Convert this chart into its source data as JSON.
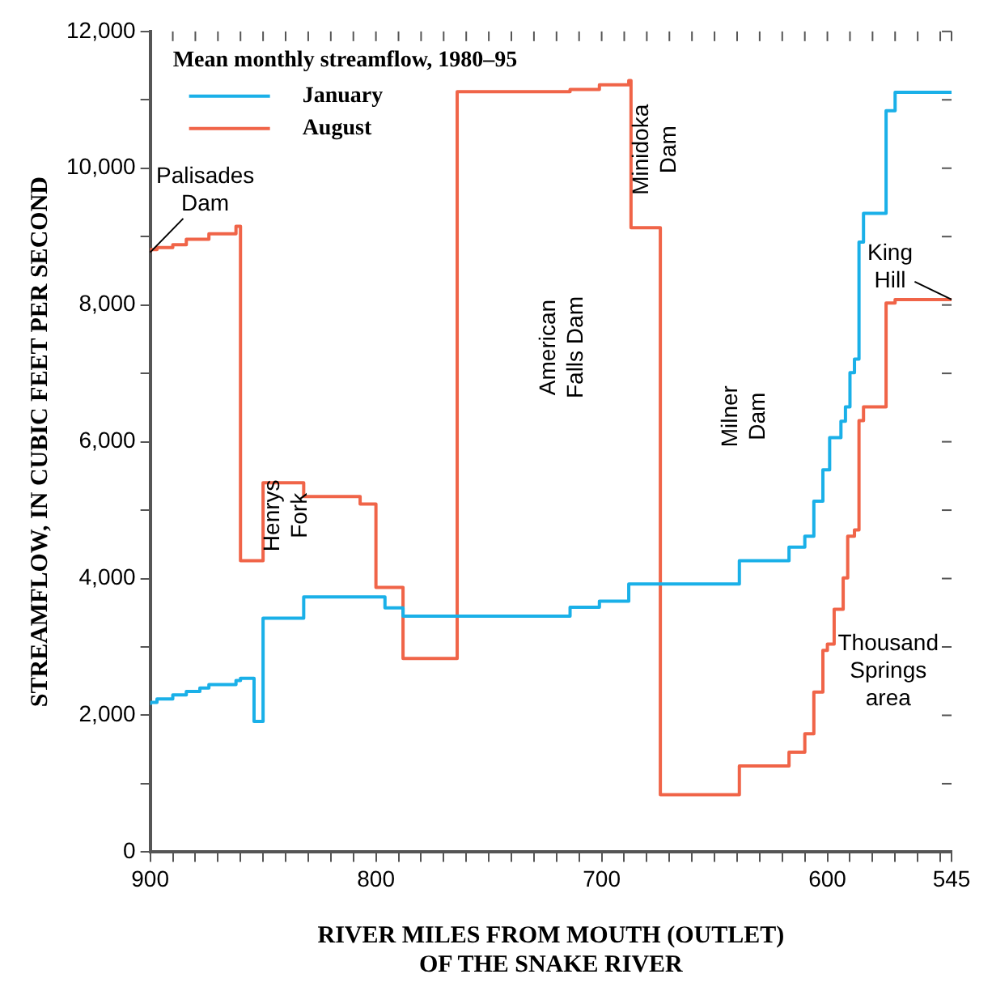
{
  "chart_data": {
    "type": "step",
    "xlabel": "RIVER MILES FROM MOUTH (OUTLET)\nOF THE SNAKE RIVER",
    "ylabel": "STREAMFLOW, IN CUBIC FEET PER SECOND",
    "legend_title": "Mean monthly streamflow, 1980–95",
    "series": [
      {
        "name": "January",
        "color": "#1ab0e8",
        "x": [
          900,
          897,
          890,
          884,
          878,
          874,
          862,
          860,
          854,
          850,
          832,
          796,
          788,
          714,
          701,
          688,
          639,
          617,
          610,
          606,
          602,
          599,
          594,
          592,
          590,
          588,
          586,
          584,
          574,
          570,
          548,
          545
        ],
        "values": [
          2150,
          2190,
          2240,
          2300,
          2350,
          2400,
          2450,
          2510,
          2540,
          1910,
          3420,
          3730,
          3570,
          3450,
          3580,
          3670,
          3920,
          4260,
          4460,
          4620,
          5130,
          5590,
          6060,
          6300,
          6510,
          7010,
          7210,
          8920,
          9340,
          10840,
          11110,
          11110
        ]
      },
      {
        "name": "August",
        "color": "#f06448",
        "x": [
          900,
          897,
          890,
          884,
          874,
          862,
          860,
          850,
          832,
          807,
          800,
          788,
          764,
          714,
          701,
          688,
          687,
          674,
          639,
          617,
          610,
          606,
          602,
          600,
          597,
          593,
          591,
          588,
          586,
          584,
          574,
          570,
          548,
          545
        ],
        "values": [
          8770,
          8810,
          8840,
          8880,
          8960,
          9040,
          9150,
          4260,
          5400,
          5200,
          5090,
          3870,
          2830,
          11120,
          11150,
          11220,
          11280,
          9130,
          840,
          1260,
          1460,
          1730,
          2340,
          2950,
          3040,
          3550,
          4010,
          4620,
          4710,
          6310,
          6510,
          8030,
          8080,
          8080
        ]
      }
    ],
    "xlim": [
      900,
      545
    ],
    "xticks": [
      900,
      {
        "value": 890,
        "label": null
      },
      {
        "value": 880,
        "label": null
      },
      {
        "value": 870,
        "label": null
      },
      {
        "value": 860,
        "label": null
      },
      {
        "value": 850,
        "label": null
      },
      {
        "value": 840,
        "label": null
      },
      {
        "value": 830,
        "label": null
      },
      {
        "value": 820,
        "label": null
      },
      {
        "value": 810,
        "label": null
      },
      800,
      {
        "value": 790,
        "label": null
      },
      {
        "value": 780,
        "label": null
      },
      {
        "value": 770,
        "label": null
      },
      {
        "value": 760,
        "label": null
      },
      {
        "value": 750,
        "label": null
      },
      {
        "value": 740,
        "label": null
      },
      {
        "value": 730,
        "label": null
      },
      {
        "value": 720,
        "label": null
      },
      {
        "value": 710,
        "label": null
      },
      700,
      {
        "value": 690,
        "label": null
      },
      {
        "value": 680,
        "label": null
      },
      {
        "value": 670,
        "label": null
      },
      {
        "value": 660,
        "label": null
      },
      {
        "value": 650,
        "label": null
      },
      {
        "value": 640,
        "label": null
      },
      {
        "value": 630,
        "label": null
      },
      {
        "value": 620,
        "label": null
      },
      {
        "value": 610,
        "label": null
      },
      600,
      {
        "value": 590,
        "label": null
      },
      {
        "value": 580,
        "label": null
      },
      {
        "value": 570,
        "label": null
      },
      {
        "value": 560,
        "label": null
      },
      {
        "value": 550,
        "label": null
      },
      545
    ],
    "ylim": [
      0,
      12000
    ],
    "yticks": [
      0,
      {
        "value": 1000,
        "label": null
      },
      {
        "value": 2000,
        "label": "2,000"
      },
      {
        "value": 3000,
        "label": null
      },
      {
        "value": 4000,
        "label": "4,000"
      },
      {
        "value": 5000,
        "label": null
      },
      {
        "value": 6000,
        "label": "6,000"
      },
      {
        "value": 7000,
        "label": null
      },
      {
        "value": 8000,
        "label": "8,000"
      },
      {
        "value": 9000,
        "label": null
      },
      {
        "value": 10000,
        "label": "10,000"
      },
      {
        "value": 11000,
        "label": null
      },
      {
        "value": 12000,
        "label": "12,000"
      }
    ],
    "grid": false,
    "legend": "top left",
    "marker": "none",
    "line_style": "solid",
    "annotations": [
      {
        "text": "Palisades\nDam",
        "x": 900,
        "y": 8770
      },
      "Henrys\nFork",
      "American\nFalls Dam",
      "Minidoka\nDam",
      "Milner\nDam",
      {
        "text": "King\nHill",
        "x": 545,
        "y": 8080
      },
      "Thousand\nSprings\narea"
    ]
  }
}
